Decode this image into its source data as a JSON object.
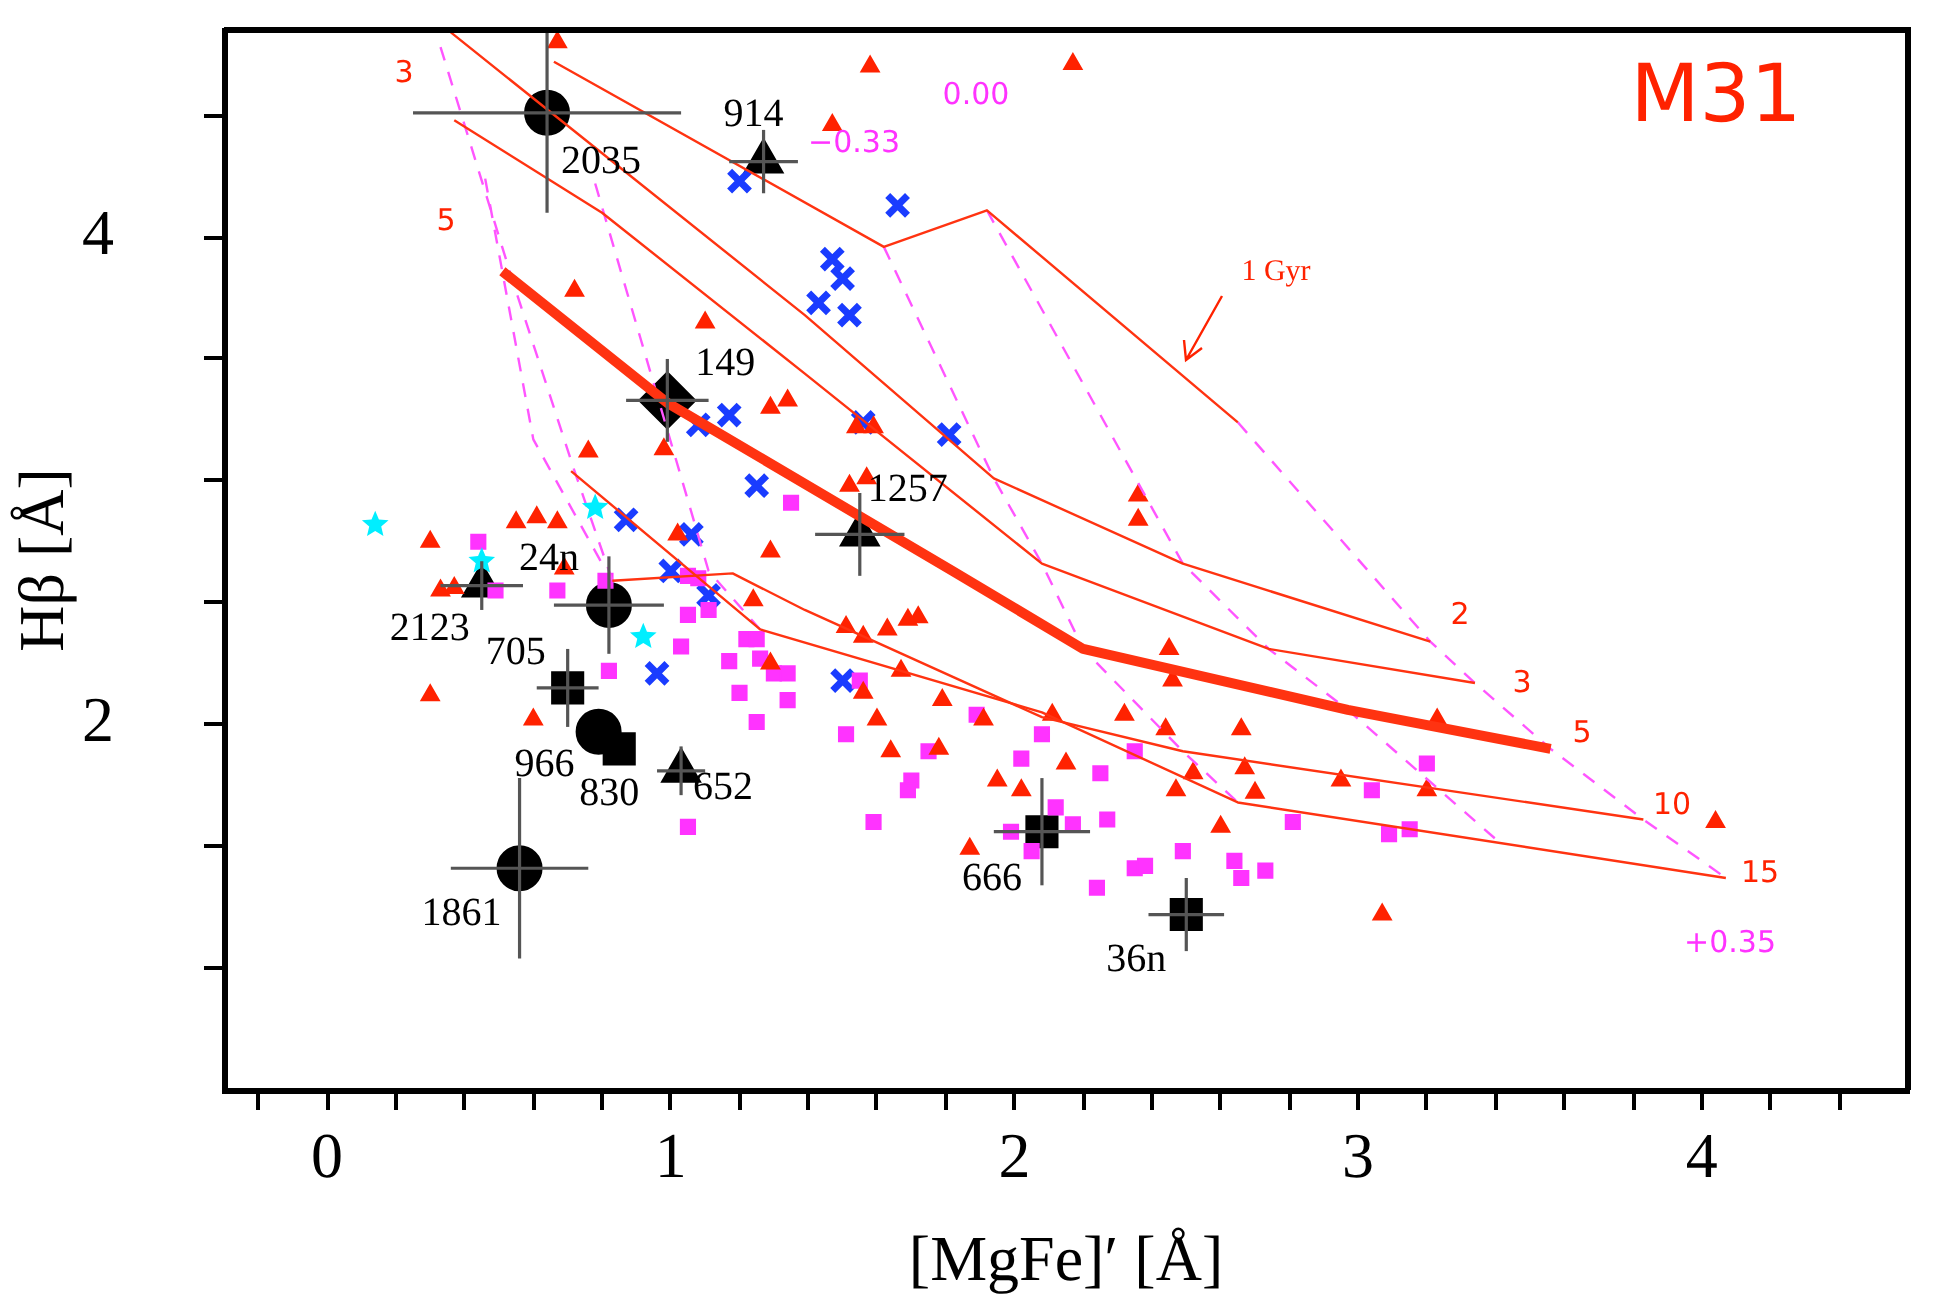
{
  "chart_data": {
    "type": "scatter",
    "xlabel": "[MgFe]′ [Å]",
    "ylabel": "Hβ [Å]",
    "xlim": [
      -0.3,
      4.6
    ],
    "ylim": [
      0.5,
      4.85
    ],
    "xticks": [
      {
        "value": -0.2,
        "label": null
      },
      0,
      {
        "value": 0.2,
        "label": null
      },
      {
        "value": 0.4,
        "label": null
      },
      {
        "value": 0.6,
        "label": null
      },
      {
        "value": 0.8,
        "label": null
      },
      1,
      {
        "value": 1.2,
        "label": null
      },
      {
        "value": 1.4,
        "label": null
      },
      {
        "value": 1.6,
        "label": null
      },
      {
        "value": 1.8,
        "label": null
      },
      2,
      {
        "value": 2.2,
        "label": null
      },
      {
        "value": 2.4,
        "label": null
      },
      {
        "value": 2.6,
        "label": null
      },
      {
        "value": 2.8,
        "label": null
      },
      3,
      {
        "value": 3.2,
        "label": null
      },
      {
        "value": 3.4,
        "label": null
      },
      {
        "value": 3.6,
        "label": null
      },
      {
        "value": 3.8,
        "label": null
      },
      4,
      {
        "value": 4.2,
        "label": null
      },
      {
        "value": 4.4,
        "label": null
      }
    ],
    "yticks": [
      {
        "value": 1,
        "label": null
      },
      {
        "value": 1.5,
        "label": null
      },
      2,
      {
        "value": 2.5,
        "label": null
      },
      {
        "value": 3,
        "label": null
      },
      {
        "value": 3.5,
        "label": null
      },
      4,
      {
        "value": 4.5,
        "label": null
      }
    ],
    "series": [
      {
        "type": "line",
        "color": "#ff3311",
        "marker": "none",
        "line_style": "solid",
        "x": [
          0.66,
          1.62,
          1.92,
          2.65
        ],
        "values": [
          4.72,
          3.96,
          4.11,
          3.24
        ]
      },
      {
        "type": "line",
        "color": "#ff3311",
        "marker": "none",
        "line_style": "solid",
        "x": [
          0.36,
          1.39,
          1.94,
          2.49,
          3.21
        ],
        "values": [
          4.84,
          3.68,
          3.01,
          2.66,
          2.34
        ]
      },
      {
        "type": "line",
        "color": "#ff3311",
        "marker": "none",
        "line_style": "solid",
        "x": [
          0.37,
          0.8,
          1.39,
          2.08,
          2.74,
          3.34
        ],
        "values": [
          4.48,
          4.1,
          3.44,
          2.66,
          2.31,
          2.17
        ]
      },
      {
        "type": "line",
        "color": "#ff3311",
        "marker": "none",
        "line_style": "solid",
        "x": [
          0.51,
          0.99,
          1.82,
          2.2,
          2.97,
          3.56
        ],
        "values": [
          3.86,
          3.32,
          2.63,
          2.31,
          2.06,
          1.9
        ]
      },
      {
        "type": "line",
        "color": "#ff3311",
        "marker": "none",
        "line_style": "solid",
        "x": [
          0.83,
          1.18,
          1.39,
          2.08,
          2.49,
          3.83
        ],
        "values": [
          2.59,
          2.62,
          2.47,
          2.03,
          1.89,
          1.61
        ]
      },
      {
        "type": "line",
        "color": "#ff3311",
        "marker": "none",
        "line_style": "solid",
        "x": [
          0.71,
          1.26,
          2.08,
          2.65,
          4.07
        ],
        "values": [
          3.04,
          2.39,
          2.05,
          1.68,
          1.37
        ]
      },
      {
        "type": "line",
        "color": "#ff55ff",
        "marker": "none",
        "line_style": "dashed",
        "x": [
          2.65,
          3.21,
          3.34,
          3.56,
          3.83,
          4.07
        ],
        "values": [
          3.24,
          2.34,
          2.17,
          1.9,
          1.61,
          1.37
        ]
      },
      {
        "type": "line",
        "color": "#ff55ff",
        "marker": "none",
        "line_style": "dashed",
        "x": [
          1.92,
          2.49,
          2.74,
          2.97,
          3.4
        ],
        "values": [
          4.11,
          2.66,
          2.31,
          2.06,
          1.53
        ]
      },
      {
        "type": "line",
        "color": "#ff55ff",
        "marker": "none",
        "line_style": "dashed",
        "x": [
          1.62,
          1.94,
          2.08,
          2.2,
          2.49,
          2.65
        ],
        "values": [
          3.96,
          3.01,
          2.66,
          2.31,
          1.89,
          1.68
        ]
      },
      {
        "type": "line",
        "color": "#ff55ff",
        "marker": "none",
        "line_style": "dashed",
        "x": [
          0.33,
          0.54,
          0.72,
          0.83
        ],
        "values": [
          4.78,
          3.82,
          3.04,
          2.59
        ]
      },
      {
        "type": "line",
        "color": "#ff55ff",
        "marker": "none",
        "line_style": "dashed",
        "x": [
          0.46,
          0.6,
          0.8
        ],
        "values": [
          4.24,
          3.17,
          2.66
        ]
      },
      {
        "type": "line",
        "color": "#ff55ff",
        "marker": "none",
        "line_style": "dashed",
        "x": [
          0.78,
          1.11,
          1.26
        ],
        "values": [
          4.22,
          2.63,
          2.39
        ]
      },
      {
        "color": "#ff2200",
        "marker": "triangle",
        "x": [
          0.67,
          1.47,
          1.58,
          2.17,
          0.72,
          1.1,
          1.29,
          1.34,
          1.54,
          1.59,
          0.76,
          0.98,
          1.52,
          1.57,
          2.36,
          2.36,
          1.29,
          1.02,
          0.3,
          0.55,
          0.61,
          0.67,
          0.33,
          0.37,
          0.69,
          1.24,
          1.51,
          1.56,
          1.63,
          1.69,
          1.72,
          0.3,
          0.6,
          1.29,
          1.56,
          1.67,
          1.79,
          1.6,
          1.91,
          1.64,
          1.78,
          2.11,
          1.95,
          2.02,
          2.15,
          1.87,
          2.45,
          2.46,
          2.32,
          2.44,
          2.66,
          2.67,
          2.52,
          2.47,
          2.7,
          2.95,
          3.2,
          3.23,
          2.6,
          3.07,
          4.04
        ],
        "values": [
          4.8,
          4.46,
          4.7,
          4.71,
          3.78,
          3.65,
          3.3,
          3.33,
          3.22,
          3.22,
          3.12,
          3.13,
          2.98,
          3.01,
          2.94,
          2.84,
          2.71,
          2.78,
          2.75,
          2.83,
          2.85,
          2.83,
          2.55,
          2.56,
          2.64,
          2.51,
          2.4,
          2.36,
          2.39,
          2.43,
          2.44,
          2.12,
          2.02,
          2.25,
          2.13,
          2.22,
          2.1,
          2.02,
          2.02,
          1.89,
          1.9,
          2.04,
          1.77,
          1.73,
          1.84,
          1.49,
          2.31,
          2.18,
          2.04,
          1.98,
          1.98,
          1.82,
          1.8,
          1.73,
          1.72,
          1.77,
          1.73,
          2.02,
          1.58,
          1.22,
          1.6
        ]
      },
      {
        "color": "#ff33ff",
        "marker": "square",
        "x": [
          0.44,
          0.49,
          0.67,
          0.81,
          0.82,
          1.05,
          1.08,
          1.05,
          1.11,
          1.03,
          1.17,
          1.2,
          1.22,
          1.25,
          1.26,
          1.3,
          1.34,
          1.34,
          1.25,
          1.51,
          1.55,
          1.75,
          1.7,
          1.69,
          1.59,
          1.89,
          2.08,
          2.02,
          2.12,
          2.17,
          1.99,
          2.05,
          1.05,
          1.35,
          2.25,
          2.27,
          2.35,
          2.24,
          2.35,
          2.38,
          2.49,
          2.64,
          2.66,
          2.73,
          2.81,
          3.04,
          3.09,
          3.15,
          3.2
        ],
        "values": [
          2.75,
          2.55,
          2.55,
          2.59,
          2.22,
          2.61,
          2.6,
          2.45,
          2.47,
          2.32,
          2.26,
          2.13,
          2.35,
          2.35,
          2.27,
          2.21,
          2.21,
          2.1,
          2.01,
          1.96,
          2.18,
          1.89,
          1.77,
          1.73,
          1.6,
          2.04,
          1.96,
          1.86,
          1.66,
          1.59,
          1.56,
          1.48,
          1.58,
          2.91,
          1.8,
          1.61,
          1.89,
          1.33,
          1.41,
          1.42,
          1.48,
          1.44,
          1.37,
          1.4,
          1.6,
          1.73,
          1.55,
          1.57,
          1.84
        ]
      },
      {
        "color": "#1a3cff",
        "marker": "cross",
        "x": [
          1.2,
          1.66,
          1.47,
          1.5,
          1.43,
          1.52,
          1.08,
          1.17,
          1.56,
          1.81,
          1.25,
          0.87,
          1.06,
          1.0,
          1.11,
          0.96,
          1.5
        ],
        "values": [
          4.23,
          4.13,
          3.91,
          3.83,
          3.73,
          3.68,
          3.23,
          3.27,
          3.24,
          3.19,
          2.98,
          2.84,
          2.78,
          2.63,
          2.53,
          2.21,
          2.18
        ]
      },
      {
        "color": "#00eeff",
        "marker": "star",
        "x": [
          0.14,
          0.78,
          0.45,
          0.92
        ],
        "values": [
          2.82,
          2.89,
          2.67,
          2.36
        ]
      },
      {
        "color": "#000000",
        "marker": "circle",
        "x": [
          0.64,
          0.56,
          0.82,
          0.79
        ],
        "values": [
          4.51,
          1.41,
          2.49,
          1.97
        ],
        "errors": [
          [
            4.1,
            4.85
          ],
          0.37,
          0.2,
          null
        ],
        "xerrors": [
          0.39,
          0.2,
          0.16,
          null
        ]
      },
      {
        "color": "#000000",
        "marker": "square",
        "x": [
          0.7,
          0.85,
          2.08,
          2.5
        ],
        "values": [
          2.15,
          1.9,
          1.56,
          1.22
        ],
        "errors": [
          0.16,
          null,
          0.22,
          0.15
        ],
        "xerrors": [
          0.09,
          null,
          0.14,
          0.11
        ]
      },
      {
        "color": "#000000",
        "marker": "triangle",
        "x": [
          1.27,
          1.55,
          0.45,
          1.03
        ],
        "values": [
          4.31,
          2.78,
          2.57,
          1.81
        ],
        "errors": [
          0.13,
          0.17,
          0.1,
          0.1
        ],
        "xerrors": [
          0.1,
          0.13,
          0.12,
          0.07
        ]
      },
      {
        "color": "#000000",
        "marker": "diamond",
        "x": [
          0.99
        ],
        "values": [
          3.33
        ],
        "errors": [
          0.17
        ],
        "xerrors": [
          0.12
        ]
      }
    ],
    "annotations": [
      "M31",
      {
        "text": "2035",
        "x": 0.64,
        "y": 4.51
      },
      {
        "text": "914",
        "x": 1.27,
        "y": 4.31
      },
      {
        "text": "149",
        "x": 0.99,
        "y": 3.33
      },
      {
        "text": "1257",
        "x": 1.55,
        "y": 2.78
      },
      {
        "text": "24n",
        "x": 0.82,
        "y": 2.49
      },
      {
        "text": "2123",
        "x": 0.45,
        "y": 2.57
      },
      {
        "text": "705",
        "x": 0.7,
        "y": 2.15
      },
      {
        "text": "966",
        "x": 0.79,
        "y": 1.97
      },
      {
        "text": "830",
        "x": 0.85,
        "y": 1.9
      },
      {
        "text": "652",
        "x": 1.03,
        "y": 1.81
      },
      {
        "text": "1861",
        "x": 0.56,
        "y": 1.41
      },
      {
        "text": "666",
        "x": 2.08,
        "y": 1.56
      },
      {
        "text": "36n",
        "x": 2.5,
        "y": 1.22
      },
      "1 Gyr",
      "2",
      "3",
      "5",
      "10",
      "15",
      "3",
      "5",
      "0.00",
      "−0.33",
      "+0.35"
    ]
  }
}
